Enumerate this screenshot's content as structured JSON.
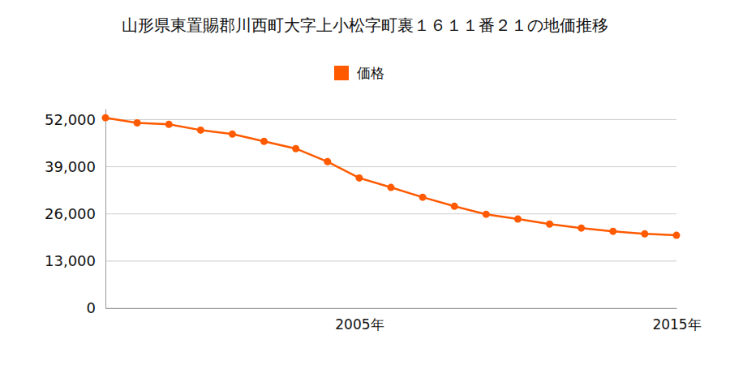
{
  "chart_data": {
    "type": "line",
    "title": "山形県東置賜郡川西町大字上小松字町裏１６１１番２１の地価推移",
    "x": [
      1997,
      1998,
      1999,
      2000,
      2001,
      2002,
      2003,
      2004,
      2005,
      2006,
      2007,
      2008,
      2009,
      2010,
      2011,
      2012,
      2013,
      2014,
      2015
    ],
    "series": [
      {
        "name": "価格",
        "color": "#ff5a00",
        "marker": "circle",
        "values": [
          52500,
          51100,
          50700,
          49100,
          48000,
          46000,
          44000,
          40400,
          35900,
          33300,
          30600,
          28100,
          25900,
          24600,
          23200,
          22100,
          21200,
          20500,
          20100
        ]
      }
    ],
    "xlim": [
      1997,
      2015
    ],
    "xticks": [
      {
        "value": 2005,
        "label": "2005年"
      },
      {
        "value": 2015,
        "label": "2015年"
      }
    ],
    "ylim": [
      0,
      55000
    ],
    "yticks": [
      0,
      {
        "value": 13000,
        "label": "13,000"
      },
      {
        "value": 26000,
        "label": "26,000"
      },
      {
        "value": 39000,
        "label": "39,000"
      },
      {
        "value": 52000,
        "label": "52,000"
      }
    ],
    "grid": true,
    "legend": "top"
  }
}
